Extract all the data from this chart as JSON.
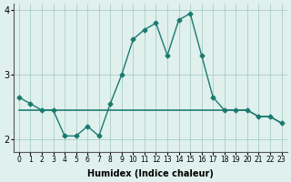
{
  "xlabel": "Humidex (Indice chaleur)",
  "x_values": [
    0,
    1,
    2,
    3,
    4,
    5,
    6,
    7,
    8,
    9,
    10,
    11,
    12,
    13,
    14,
    15,
    16,
    17,
    18,
    19,
    20,
    21,
    22,
    23
  ],
  "line1": [
    2.65,
    2.55,
    2.45,
    2.45,
    2.05,
    2.05,
    2.2,
    2.05,
    2.45,
    null,
    null,
    null,
    null,
    null,
    null,
    null,
    null,
    null,
    null,
    null,
    null,
    null,
    null,
    null
  ],
  "line2": [
    null,
    null,
    2.45,
    2.45,
    null,
    2.45,
    2.45,
    2.45,
    2.45,
    2.45,
    2.45,
    2.45,
    2.45,
    2.45,
    2.45,
    2.45,
    2.45,
    2.45,
    2.45,
    2.45,
    2.45,
    2.35,
    2.35,
    2.25
  ],
  "line3": [
    null,
    null,
    null,
    null,
    null,
    null,
    null,
    null,
    null,
    null,
    null,
    null,
    null,
    null,
    null,
    null,
    null,
    null,
    null,
    null,
    null,
    null,
    null,
    null
  ],
  "line_main": [
    null,
    null,
    null,
    null,
    null,
    null,
    null,
    null,
    null,
    null,
    null,
    null,
    null,
    null,
    null,
    null,
    null,
    null,
    null,
    null,
    null,
    null,
    null,
    null
  ],
  "curve": [
    2.65,
    2.55,
    2.45,
    2.45,
    2.05,
    2.05,
    2.2,
    2.05,
    2.55,
    3.0,
    3.55,
    3.7,
    3.8,
    3.3,
    3.85,
    3.95,
    3.3,
    2.65,
    2.45,
    2.45,
    2.45,
    2.35,
    2.35,
    2.25
  ],
  "flat_line": [
    2.45,
    2.45,
    2.45,
    2.45,
    2.45,
    2.45,
    2.45,
    2.45,
    2.45,
    2.45,
    2.45,
    2.45,
    2.45,
    2.45,
    2.45,
    2.45,
    2.45,
    2.45,
    2.45,
    2.45,
    2.45,
    2.35,
    2.35,
    2.25
  ],
  "flat_line2": [
    2.45,
    2.45,
    2.45,
    2.45,
    2.45,
    2.45,
    2.45,
    2.45,
    2.45,
    2.45,
    2.45,
    2.45,
    2.45,
    2.45,
    2.45,
    2.45,
    2.45,
    2.45,
    2.45,
    2.45,
    2.45,
    2.35,
    2.35,
    2.25
  ],
  "line_color": "#1a7a6e",
  "bg_color": "#dff0ed",
  "grid_color": "#a0c8c0",
  "ylim": [
    1.8,
    4.1
  ],
  "yticks": [
    2,
    3,
    4
  ],
  "xlim": [
    -0.5,
    23.5
  ]
}
